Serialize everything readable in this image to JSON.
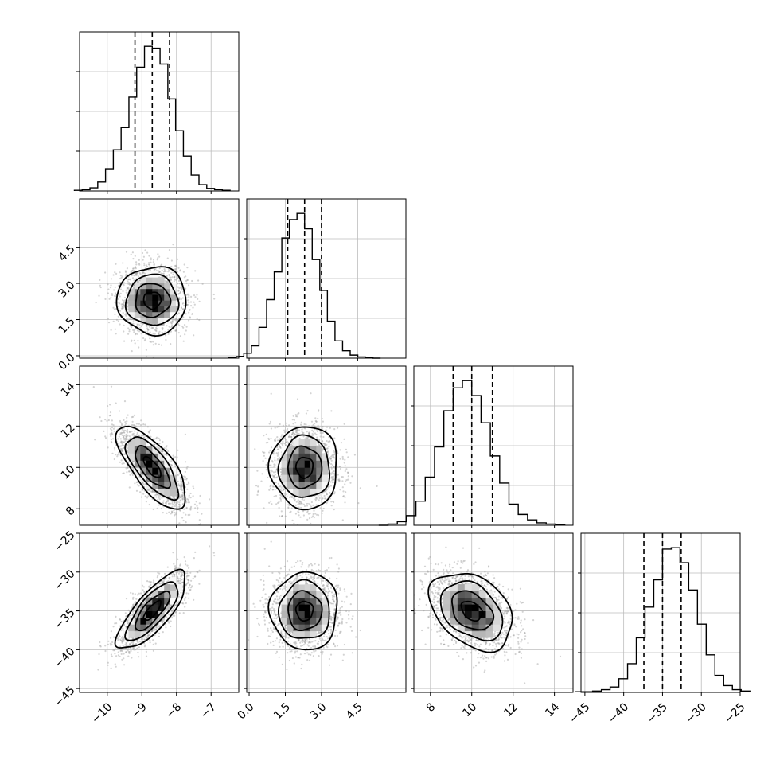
{
  "chart_data": {
    "type": "scatter",
    "kind": "corner-plot",
    "layout": "lower-triangle grid of 4 x 4 panels: 1-D histograms on the diagonal, 2-D sample scatter with shaded density and contours below the diagonal",
    "grid": true,
    "parameters": [
      {
        "name": "",
        "mean": -8.7,
        "sd": 0.5,
        "q16": -9.2,
        "q50": -8.7,
        "q84": -8.2,
        "range": [
          -10.8,
          -6.2
        ],
        "ticks": [
          -10,
          -9,
          -8,
          -7
        ],
        "tick_labels": [
          "−10",
          "−9",
          "−8",
          "−7"
        ]
      },
      {
        "name": "",
        "mean": 2.3,
        "sd": 0.7,
        "q16": 1.6,
        "q50": 2.3,
        "q84": 3.0,
        "range": [
          -0.1,
          6.5
        ],
        "ticks": [
          0.0,
          1.5,
          3.0,
          4.5
        ],
        "tick_labels": [
          "0.0",
          "1.5",
          "3.0",
          "4.5"
        ]
      },
      {
        "name": "",
        "mean": 10.0,
        "sd": 1.0,
        "q16": 9.1,
        "q50": 10.0,
        "q84": 11.0,
        "range": [
          7.2,
          14.9
        ],
        "ticks": [
          8,
          10,
          12,
          14
        ],
        "tick_labels": [
          "8",
          "10",
          "12",
          "14"
        ]
      },
      {
        "name": "",
        "mean": -35.0,
        "sd": 2.5,
        "q16": -37.4,
        "q50": -35.0,
        "q84": -32.6,
        "range": [
          -45.5,
          -25.0
        ],
        "ticks": [
          -45,
          -40,
          -35,
          -30,
          -25
        ],
        "tick_labels": [
          "−45",
          "−40",
          "−35",
          "−30",
          "−25"
        ]
      }
    ],
    "correlations": {
      "0-1": 0.0,
      "0-2": -0.72,
      "0-3": 0.78,
      "1-2": 0.0,
      "1-3": 0.0,
      "2-3": -0.35
    },
    "histograms": {
      "bins": 20,
      "counts": [
        [
          1,
          2,
          5,
          14,
          35,
          65,
          100,
          148,
          195,
          228,
          225,
          200,
          145,
          95,
          55,
          25,
          10,
          4,
          2,
          1
        ],
        [
          1,
          3,
          8,
          20,
          50,
          95,
          140,
          195,
          225,
          235,
          210,
          160,
          110,
          60,
          28,
          12,
          5,
          2,
          1,
          0
        ],
        [
          0,
          2,
          6,
          16,
          40,
          80,
          130,
          190,
          228,
          240,
          215,
          170,
          115,
          70,
          35,
          18,
          9,
          4,
          2,
          1
        ],
        [
          1,
          1,
          2,
          4,
          8,
          20,
          42,
          80,
          125,
          165,
          210,
          212,
          190,
          150,
          100,
          55,
          25,
          10,
          4,
          2
        ]
      ]
    },
    "samples_per_panel": 1800,
    "contour_levels_sigma": [
      0.5,
      1.0,
      1.5,
      2.0
    ],
    "colors": {
      "density_max": "#000000",
      "points": "#9e9e9e",
      "grid": "#bdbdbd",
      "lines": "#000000"
    }
  }
}
